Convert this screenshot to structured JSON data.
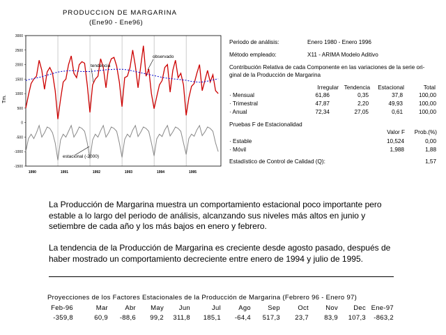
{
  "chart_data": {
    "type": "line",
    "title": "PRODUCCION DE MARGARINA",
    "subtitle": "(Ene90 - Ene96)",
    "ylabel": "Tm.",
    "ylim": [
      -1500,
      3000
    ],
    "y_ticks": [
      3000,
      2500,
      2000,
      1500,
      1000,
      500,
      0,
      -500,
      -1000,
      -1500
    ],
    "x_tick_labels": [
      "1990",
      "1991",
      "1992",
      "1993",
      "1994",
      "1995"
    ],
    "x_range": [
      0,
      73
    ],
    "annotations": [
      "tendencia",
      "observado",
      "estacional (-2000)"
    ],
    "series": [
      {
        "name": "observado",
        "color": "#cc0000",
        "values": [
          500,
          950,
          1350,
          1500,
          1600,
          2150,
          1800,
          1150,
          1750,
          1900,
          1700,
          1100,
          120,
          800,
          1400,
          1500,
          2000,
          2300,
          1700,
          1550,
          2000,
          2100,
          2050,
          1300,
          350,
          1300,
          1500,
          1600,
          2200,
          1900,
          1200,
          1950,
          2200,
          2250,
          1950,
          1400,
          550,
          1550,
          1600,
          1900,
          2500,
          1950,
          1200,
          1950,
          2650,
          1600,
          1850,
          1000,
          480,
          900,
          1300,
          1450,
          1900,
          2000,
          1050,
          1800,
          2150,
          1550,
          1700,
          1300,
          250,
          850,
          1250,
          1350,
          1700,
          2000,
          1100,
          1450,
          1800,
          1400,
          1650,
          1100,
          1000
        ]
      },
      {
        "name": "tendencia",
        "color": "#0000cc",
        "values": [
          1450,
          1480,
          1500,
          1520,
          1540,
          1560,
          1580,
          1610,
          1640,
          1660,
          1690,
          1720,
          1740,
          1760,
          1770,
          1780,
          1790,
          1790,
          1790,
          1780,
          1770,
          1760,
          1760,
          1760,
          1760,
          1770,
          1780,
          1790,
          1800,
          1810,
          1820,
          1830,
          1830,
          1840,
          1840,
          1840,
          1840,
          1830,
          1820,
          1800,
          1780,
          1760,
          1740,
          1720,
          1700,
          1680,
          1660,
          1640,
          1620,
          1600,
          1580,
          1560,
          1540,
          1530,
          1520,
          1510,
          1500,
          1490,
          1480,
          1470,
          1460,
          1440,
          1420,
          1410,
          1400,
          1390,
          1400,
          1410,
          1430,
          1450,
          1470,
          1490,
          1510
        ]
      },
      {
        "name": "estacional (-2000)",
        "color": "#888888",
        "values": [
          -1000,
          -550,
          -400,
          -550,
          -350,
          -100,
          -500,
          -350,
          -150,
          -200,
          -350,
          -700,
          -1300,
          -600,
          -400,
          -500,
          -300,
          -100,
          -500,
          -350,
          -150,
          -200,
          -300,
          -700,
          -1250,
          -600,
          -400,
          -500,
          -280,
          -100,
          -500,
          -350,
          -150,
          -200,
          -300,
          -700,
          -1200,
          -580,
          -400,
          -500,
          -260,
          -100,
          -480,
          -330,
          -150,
          -200,
          -300,
          -700,
          -1150,
          -560,
          -400,
          -480,
          -250,
          -100,
          -460,
          -320,
          -150,
          -200,
          -300,
          -700,
          -1100,
          -550,
          -400,
          -470,
          -250,
          -100,
          -450,
          -320,
          -150,
          -200,
          -300,
          -700,
          -1000
        ]
      }
    ]
  },
  "info": {
    "periodo_label": "Periodo de análisis:",
    "periodo_value": "Enero 1980 - Enero 1996",
    "metodo_label": "Método empleado:",
    "metodo_value": "X11 - ARIMA Modelo Aditivo",
    "contrib_line1": "Contribución Relativa de cada Componente en las variaciones de la serie ori-",
    "contrib_line2": "ginal de la Producción de Margarina",
    "contrib_headers": [
      "Irregular",
      "Tendencia",
      "Estacional",
      "Total"
    ],
    "contrib_rows": [
      {
        "label": "· Mensual",
        "values": [
          "61,86",
          "0,35",
          "37,8",
          "100,00"
        ]
      },
      {
        "label": "· Trimestral",
        "values": [
          "47,87",
          "2,20",
          "49,93",
          "100,00"
        ]
      },
      {
        "label": "· Anual",
        "values": [
          "72,34",
          "27,05",
          "0,61",
          "100,00"
        ]
      }
    ],
    "pruebas_title": "Pruebas F de Estacionalidad",
    "pruebas_headers": [
      "Valor F",
      "Prob.(%)"
    ],
    "pruebas_rows": [
      {
        "label": "· Estable",
        "values": [
          "10,524",
          "0,00"
        ]
      },
      {
        "label": "· Móvil",
        "values": [
          "1,988",
          "1,88"
        ]
      }
    ],
    "control_label": "Estadístico de Control de Calidad  (Q):",
    "control_value": "1,57"
  },
  "text": {
    "para1": "La Producción de Margarina muestra un comportamiento estacional poco importante pero estable a lo largo del periodo de análisis, alcanzando sus niveles  más altos en junio y setiembre de cada año y los más bajos en enero y febrero.",
    "para2": "La tendencia de la Producción de Margarina es creciente desde agosto pasado, después de haber mostrado un comportamiento decreciente entre enero de 1994 y julio de 1995."
  },
  "projections": {
    "title": "Proyecciones de los Factores Estacionales de la Producción de Margarina (Febrero 96 - Enero 97)",
    "months": [
      "Feb-96",
      "Mar",
      "Abr",
      "May",
      "Jun",
      "Jul",
      "Ago",
      "Sep",
      "Oct",
      "Nov",
      "Dec",
      "Ene-97"
    ],
    "values": [
      "-359,8",
      "60,9",
      "-88,6",
      "99,2",
      "311,8",
      "185,1",
      "-64,4",
      "517,3",
      "23,7",
      "83,9",
      "107,3",
      "-863,2"
    ]
  }
}
